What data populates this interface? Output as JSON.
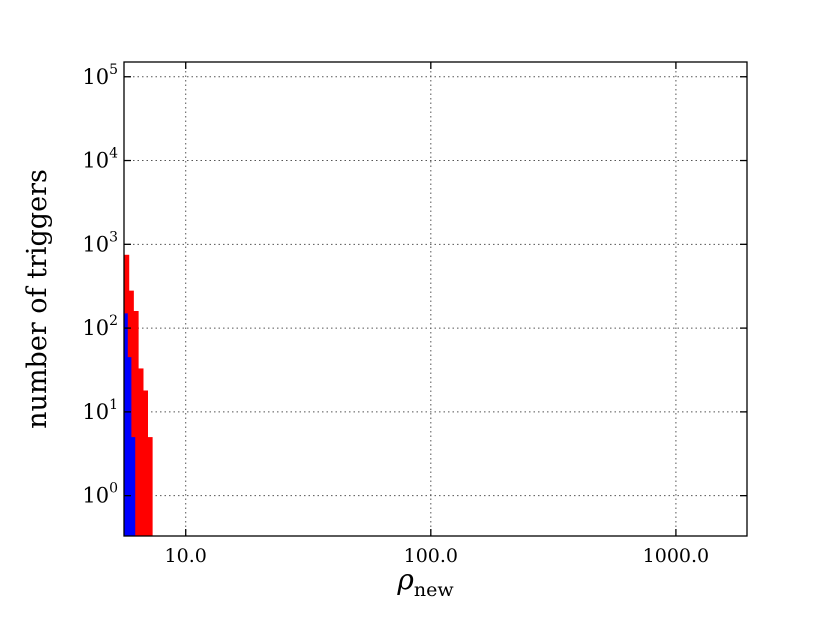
{
  "chart_data": {
    "type": "histogram",
    "x_scale": "log",
    "y_scale": "log",
    "xlim": [
      5.6,
      1950
    ],
    "ylim": [
      0.33,
      150000
    ],
    "xlabel": "ρ",
    "xlabel_sub": "new",
    "ylabel": "number of triggers",
    "grid": true,
    "x_ticks": [
      {
        "value": 10,
        "label": "10.0"
      },
      {
        "value": 100,
        "label": "100.0"
      },
      {
        "value": 1000,
        "label": "1000.0"
      }
    ],
    "y_ticks": [
      {
        "value": 1,
        "base": "10",
        "exp": "0"
      },
      {
        "value": 10,
        "base": "10",
        "exp": "1"
      },
      {
        "value": 100,
        "base": "10",
        "exp": "2"
      },
      {
        "value": 1000,
        "base": "10",
        "exp": "3"
      },
      {
        "value": 10000,
        "base": "10",
        "exp": "4"
      },
      {
        "value": 100000,
        "base": "10",
        "exp": "5"
      }
    ],
    "series": [
      {
        "color": "#ff0000",
        "bins": [
          {
            "x0": 5.6,
            "x1": 5.86,
            "count": 750
          },
          {
            "x0": 5.86,
            "x1": 6.12,
            "count": 280
          },
          {
            "x0": 6.12,
            "x1": 6.4,
            "count": 160
          },
          {
            "x0": 6.4,
            "x1": 6.7,
            "count": 33
          },
          {
            "x0": 6.7,
            "x1": 6.99,
            "count": 18
          },
          {
            "x0": 6.99,
            "x1": 7.3,
            "count": 5
          }
        ]
      },
      {
        "color": "#0000ff",
        "bins": [
          {
            "x0": 5.6,
            "x1": 5.78,
            "count": 150
          },
          {
            "x0": 5.78,
            "x1": 5.98,
            "count": 45
          },
          {
            "x0": 5.98,
            "x1": 6.2,
            "count": 5
          }
        ]
      }
    ]
  }
}
